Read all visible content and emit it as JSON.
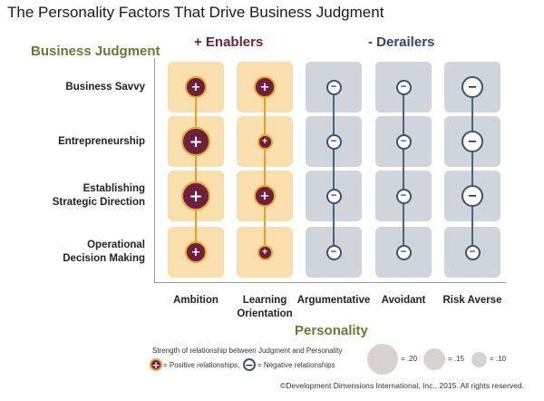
{
  "title": "The Personality Factors That Drive Business Judgment",
  "business_judgment_label": "Business Judgment",
  "enablers_label": "+ Enablers",
  "derailers_label": "- Derailers",
  "personality_label": "Personality",
  "rows": [
    "Business Savvy",
    "Entrepreneurship",
    "Establishing\nStrategic Direction",
    "Operational\nDecision Making"
  ],
  "columns": [
    {
      "label": "Ambition",
      "type": "positive"
    },
    {
      "label": "Learning\nOrientation",
      "type": "positive"
    },
    {
      "label": "Argumentative",
      "type": "negative"
    },
    {
      "label": "Avoidant",
      "type": "negative"
    },
    {
      "label": "Risk Averse",
      "type": "negative"
    }
  ],
  "positive_symbol": "+",
  "negative_symbol": "−",
  "colors": {
    "enabler_cell": "#f9dfae",
    "derailer_cell": "#cfd6db",
    "positive_circle": "#6d1f3d",
    "positive_border": "#e8a531",
    "negative_border": "#3e5568",
    "green_label": "#6a7a32"
  },
  "relationship_strengths": [
    [
      0.15,
      0.15,
      0.1,
      0.1,
      0.15
    ],
    [
      0.2,
      0.1,
      0.1,
      0.1,
      0.15
    ],
    [
      0.2,
      0.15,
      0.1,
      0.1,
      0.15
    ],
    [
      0.15,
      0.1,
      0.1,
      0.1,
      0.1
    ]
  ],
  "legend": {
    "title": "Strength of relationship between Judgment and Personality",
    "positive_text": "= Positive relationships,",
    "negative_text": "= Negative relationships",
    "sizes": [
      {
        "label": "= .20",
        "value": 0.2
      },
      {
        "label": "= .15",
        "value": 0.15
      },
      {
        "label": "= .10",
        "value": 0.1
      }
    ]
  },
  "copyright": "©Development Dimensions International, Inc., 2015. All rights reserved."
}
